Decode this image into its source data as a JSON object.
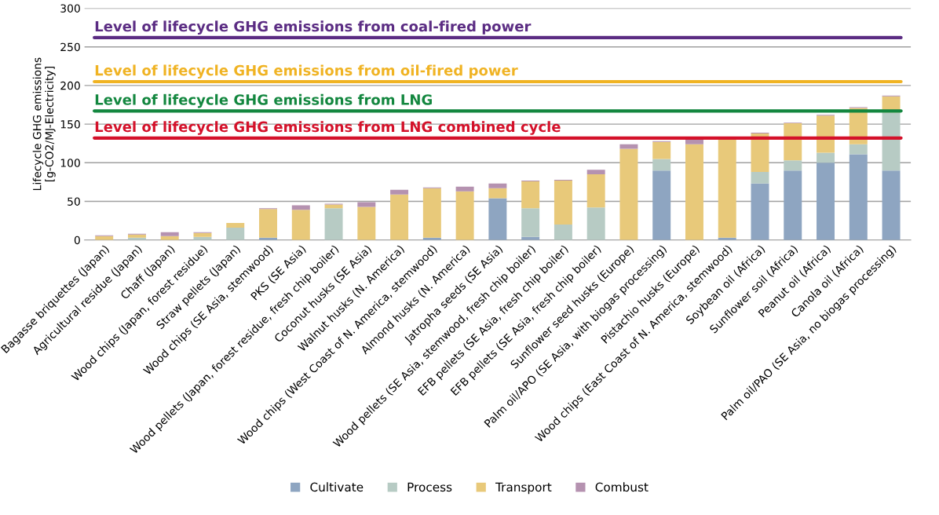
{
  "chart_data": {
    "type": "bar",
    "stacked": true,
    "ylabel": "Lifecycle GHG emissions\n[g-CO2/MJ-Electricity]",
    "categories": [
      "Bagasse briquettes (Japan)",
      "Agricultural residue (Japan)",
      "Chaff (Japan)",
      "Wood chips (Japan, forest residue)",
      "Straw pellets (Japan)",
      "Wood chips (SE Asia, stemwood)",
      "PKS (SE Asia)",
      "Wood pellets (Japan, forest residue, fresh chip boiler)",
      "Coconut husks (SE Asia)",
      "Walnut husks (N. America)",
      "Wood chips (West Coast of N. America, stemwood)",
      "Almond husks (N. America)",
      "Jatropha seeds (SE Asia)",
      "Wood pellets (SE Asia, stemwood, fresh chip boiler)",
      "EFB pellets (SE Asia, fresh chip boiler)",
      "EFB pellets (SE Asia, fresh chip boiler)",
      "Sunflower seed husks (Europe)",
      "Palm oil/APO (SE Asia, with biogas processing)",
      "Pistachio husks (Europe)",
      "Wood chips (East Coast of N. America, stemwood)",
      "Soybean oil (Africa)",
      "Sunflower soil (Africa)",
      "Peanut oil (Africa)",
      "Canola oil (Africa)",
      "Palm oil/PAO (SE Asia, no biogas processing)"
    ],
    "series": [
      {
        "name": "Cultivate",
        "color": "#8ea5c1",
        "values": [
          0,
          0,
          0,
          0,
          0,
          3,
          0,
          0,
          0,
          0,
          3,
          0,
          54,
          4,
          0,
          0,
          0,
          90,
          0,
          3,
          73,
          90,
          100,
          111,
          90
        ]
      },
      {
        "name": "Process",
        "color": "#b7cbc4",
        "values": [
          0,
          3,
          0,
          4,
          16,
          0,
          0,
          41,
          0,
          0,
          0,
          0,
          0,
          37,
          20,
          42,
          0,
          15,
          0,
          0,
          15,
          13,
          13,
          13,
          75
        ]
      },
      {
        "name": "Transport",
        "color": "#e8c97a",
        "values": [
          5,
          4,
          5,
          5,
          6,
          37,
          39,
          5,
          43,
          59,
          64,
          63,
          13,
          35,
          57,
          43,
          118,
          22,
          124,
          129,
          50,
          48,
          48,
          47,
          21
        ]
      },
      {
        "name": "Combust",
        "color": "#b592b0",
        "values": [
          1,
          1,
          5,
          1,
          0,
          1,
          6,
          1,
          6,
          6,
          1,
          6,
          6,
          1,
          1,
          6,
          6,
          1,
          6,
          null,
          1,
          1,
          1,
          1,
          1
        ]
      }
    ],
    "ylim": [
      0,
      300
    ],
    "yticks": [
      0,
      50,
      100,
      150,
      200,
      250,
      300
    ],
    "grid": "y",
    "legend": "bottom",
    "ref_lines": [
      {
        "axis": "y",
        "value": 262,
        "label": "Level of lifecycle GHG emissions from coal-fired power",
        "color": "#5b2c83"
      },
      {
        "axis": "y",
        "value": 205,
        "label": "Level of lifecycle GHG emissions from oil-fired power",
        "color": "#f0b323"
      },
      {
        "axis": "y",
        "value": 167,
        "label": "Level of lifecycle GHG emissions from LNG",
        "color": "#13873f"
      },
      {
        "axis": "y",
        "value": 132,
        "label": "Level of lifecycle GHG emissions from LNG combined cycle",
        "color": "#d4112a"
      }
    ]
  }
}
